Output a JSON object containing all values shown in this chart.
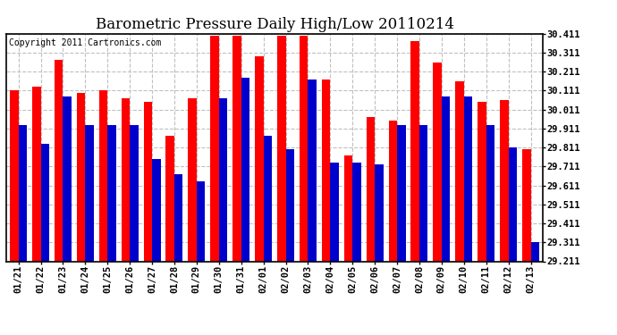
{
  "title": "Barometric Pressure Daily High/Low 20110214",
  "copyright": "Copyright 2011 Cartronics.com",
  "dates": [
    "01/21",
    "01/22",
    "01/23",
    "01/24",
    "01/25",
    "01/26",
    "01/27",
    "01/28",
    "01/29",
    "01/30",
    "01/31",
    "02/01",
    "02/02",
    "02/03",
    "02/04",
    "02/05",
    "02/06",
    "02/07",
    "02/08",
    "02/09",
    "02/10",
    "02/11",
    "02/12",
    "02/13"
  ],
  "highs": [
    30.11,
    30.13,
    30.27,
    30.1,
    30.11,
    30.07,
    30.05,
    29.87,
    30.07,
    30.4,
    30.4,
    30.29,
    30.4,
    30.4,
    30.17,
    29.77,
    29.97,
    29.95,
    30.37,
    30.26,
    30.16,
    30.05,
    30.06,
    29.8
  ],
  "lows": [
    29.93,
    29.83,
    30.08,
    29.93,
    29.93,
    29.93,
    29.75,
    29.67,
    29.63,
    30.07,
    30.18,
    29.87,
    29.8,
    30.17,
    29.73,
    29.73,
    29.72,
    29.93,
    29.93,
    30.08,
    30.08,
    29.93,
    29.81,
    29.31
  ],
  "ylim_min": 29.211,
  "ylim_max": 30.411,
  "yticks": [
    29.211,
    29.311,
    29.411,
    29.511,
    29.611,
    29.711,
    29.811,
    29.911,
    30.011,
    30.111,
    30.211,
    30.311,
    30.411
  ],
  "ytick_labels": [
    "29.211",
    "29.311",
    "29.411",
    "29.511",
    "29.611",
    "29.711",
    "29.811",
    "29.911",
    "30.011",
    "30.111",
    "30.211",
    "30.311",
    "30.411"
  ],
  "high_color": "#ff0000",
  "low_color": "#0000cc",
  "bg_color": "#ffffff",
  "grid_color": "#c0c0c0",
  "bar_width": 0.38,
  "title_fontsize": 12,
  "copyright_fontsize": 7,
  "tick_fontsize": 7.5
}
